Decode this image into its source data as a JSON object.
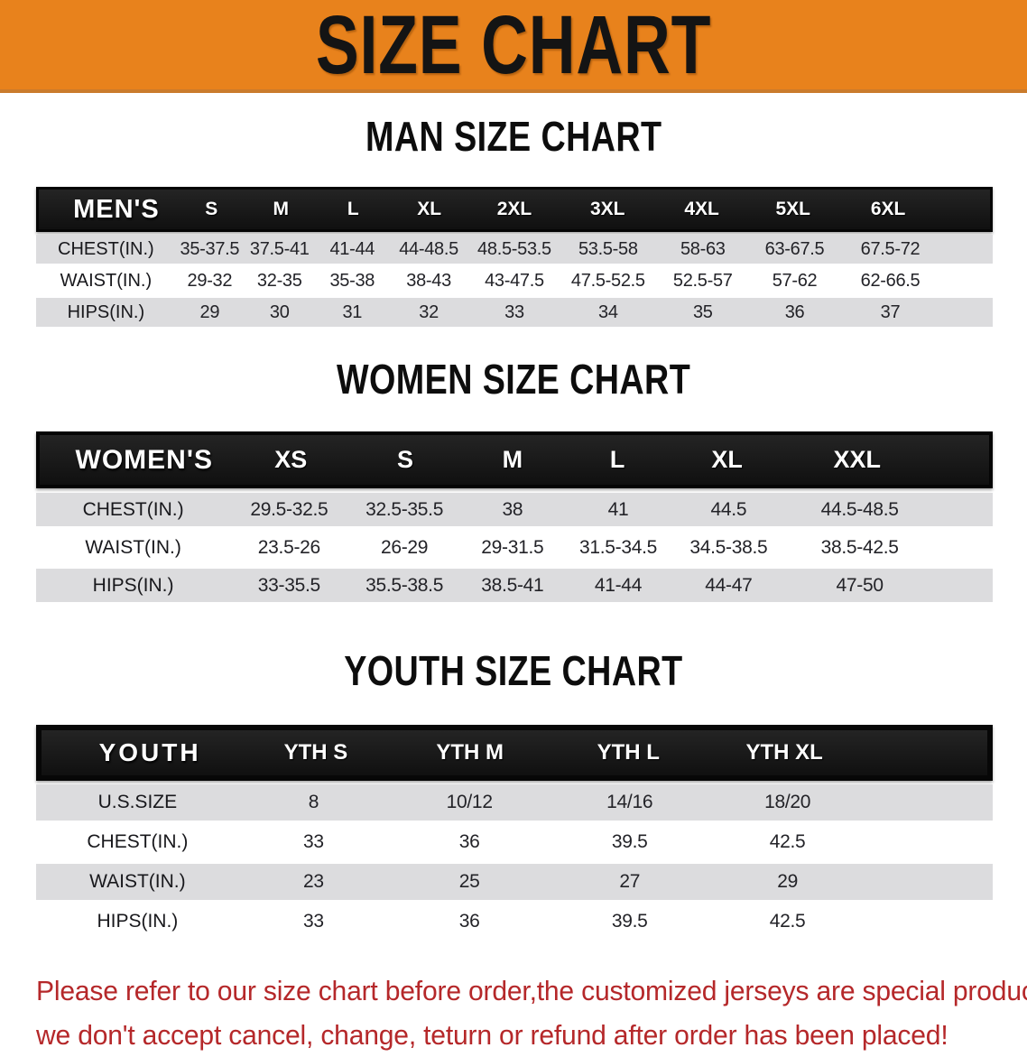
{
  "banner": {
    "title": "SIZE CHART",
    "bg_color": "#e8821c",
    "text_color": "#141414"
  },
  "sections": [
    {
      "heading": "MAN SIZE CHART",
      "table": {
        "header_label": "MEN'S",
        "columns": [
          "S",
          "M",
          "L",
          "XL",
          "2XL",
          "3XL",
          "4XL",
          "5XL",
          "6XL"
        ],
        "rows": [
          {
            "label": "CHEST(IN.)",
            "values": [
              "35-37.5",
              "37.5-41",
              "41-44",
              "44-48.5",
              "48.5-53.5",
              "53.5-58",
              "58-63",
              "63-67.5",
              "67.5-72"
            ]
          },
          {
            "label": "WAIST(IN.)",
            "values": [
              "29-32",
              "32-35",
              "35-38",
              "38-43",
              "43-47.5",
              "47.5-52.5",
              "52.5-57",
              "57-62",
              "62-66.5"
            ]
          },
          {
            "label": "HIPS(IN.)",
            "values": [
              "29",
              "30",
              "31",
              "32",
              "33",
              "34",
              "35",
              "36",
              "37"
            ]
          }
        ]
      }
    },
    {
      "heading": "WOMEN SIZE CHART",
      "table": {
        "header_label": "WOMEN'S",
        "columns": [
          "XS",
          "S",
          "M",
          "L",
          "XL",
          "XXL"
        ],
        "rows": [
          {
            "label": "CHEST(IN.)",
            "values": [
              "29.5-32.5",
              "32.5-35.5",
              "38",
              "41",
              "44.5",
              "44.5-48.5"
            ]
          },
          {
            "label": "WAIST(IN.)",
            "values": [
              "23.5-26",
              "26-29",
              "29-31.5",
              "31.5-34.5",
              "34.5-38.5",
              "38.5-42.5"
            ]
          },
          {
            "label": "HIPS(IN.)",
            "values": [
              "33-35.5",
              "35.5-38.5",
              "38.5-41",
              "41-44",
              "44-47",
              "47-50"
            ]
          }
        ]
      }
    },
    {
      "heading": "YOUTH SIZE CHART",
      "table": {
        "header_label": "YOUTH",
        "columns": [
          "YTH S",
          "YTH M",
          "YTH L",
          "YTH XL"
        ],
        "rows": [
          {
            "label": "U.S.SIZE",
            "values": [
              "8",
              "10/12",
              "14/16",
              "18/20"
            ]
          },
          {
            "label": "CHEST(IN.)",
            "values": [
              "33",
              "36",
              "39.5",
              "42.5"
            ]
          },
          {
            "label": "WAIST(IN.)",
            "values": [
              "23",
              "25",
              "27",
              "29"
            ]
          },
          {
            "label": "HIPS(IN.)",
            "values": [
              "33",
              "36",
              "39.5",
              "42.5"
            ]
          }
        ]
      }
    }
  ],
  "footer_note": {
    "line1": "Please refer to our size chart before order,the customized jerseys are special products,",
    "line2": "we don't accept cancel, change, teturn or refund after order has been placed!",
    "color": "#b5282a"
  },
  "colors": {
    "banner_orange": "#e8821c",
    "header_bar_black": "#161616",
    "row_gray": "#dcdcde",
    "row_white": "#ffffff",
    "note_red": "#b5282a"
  }
}
